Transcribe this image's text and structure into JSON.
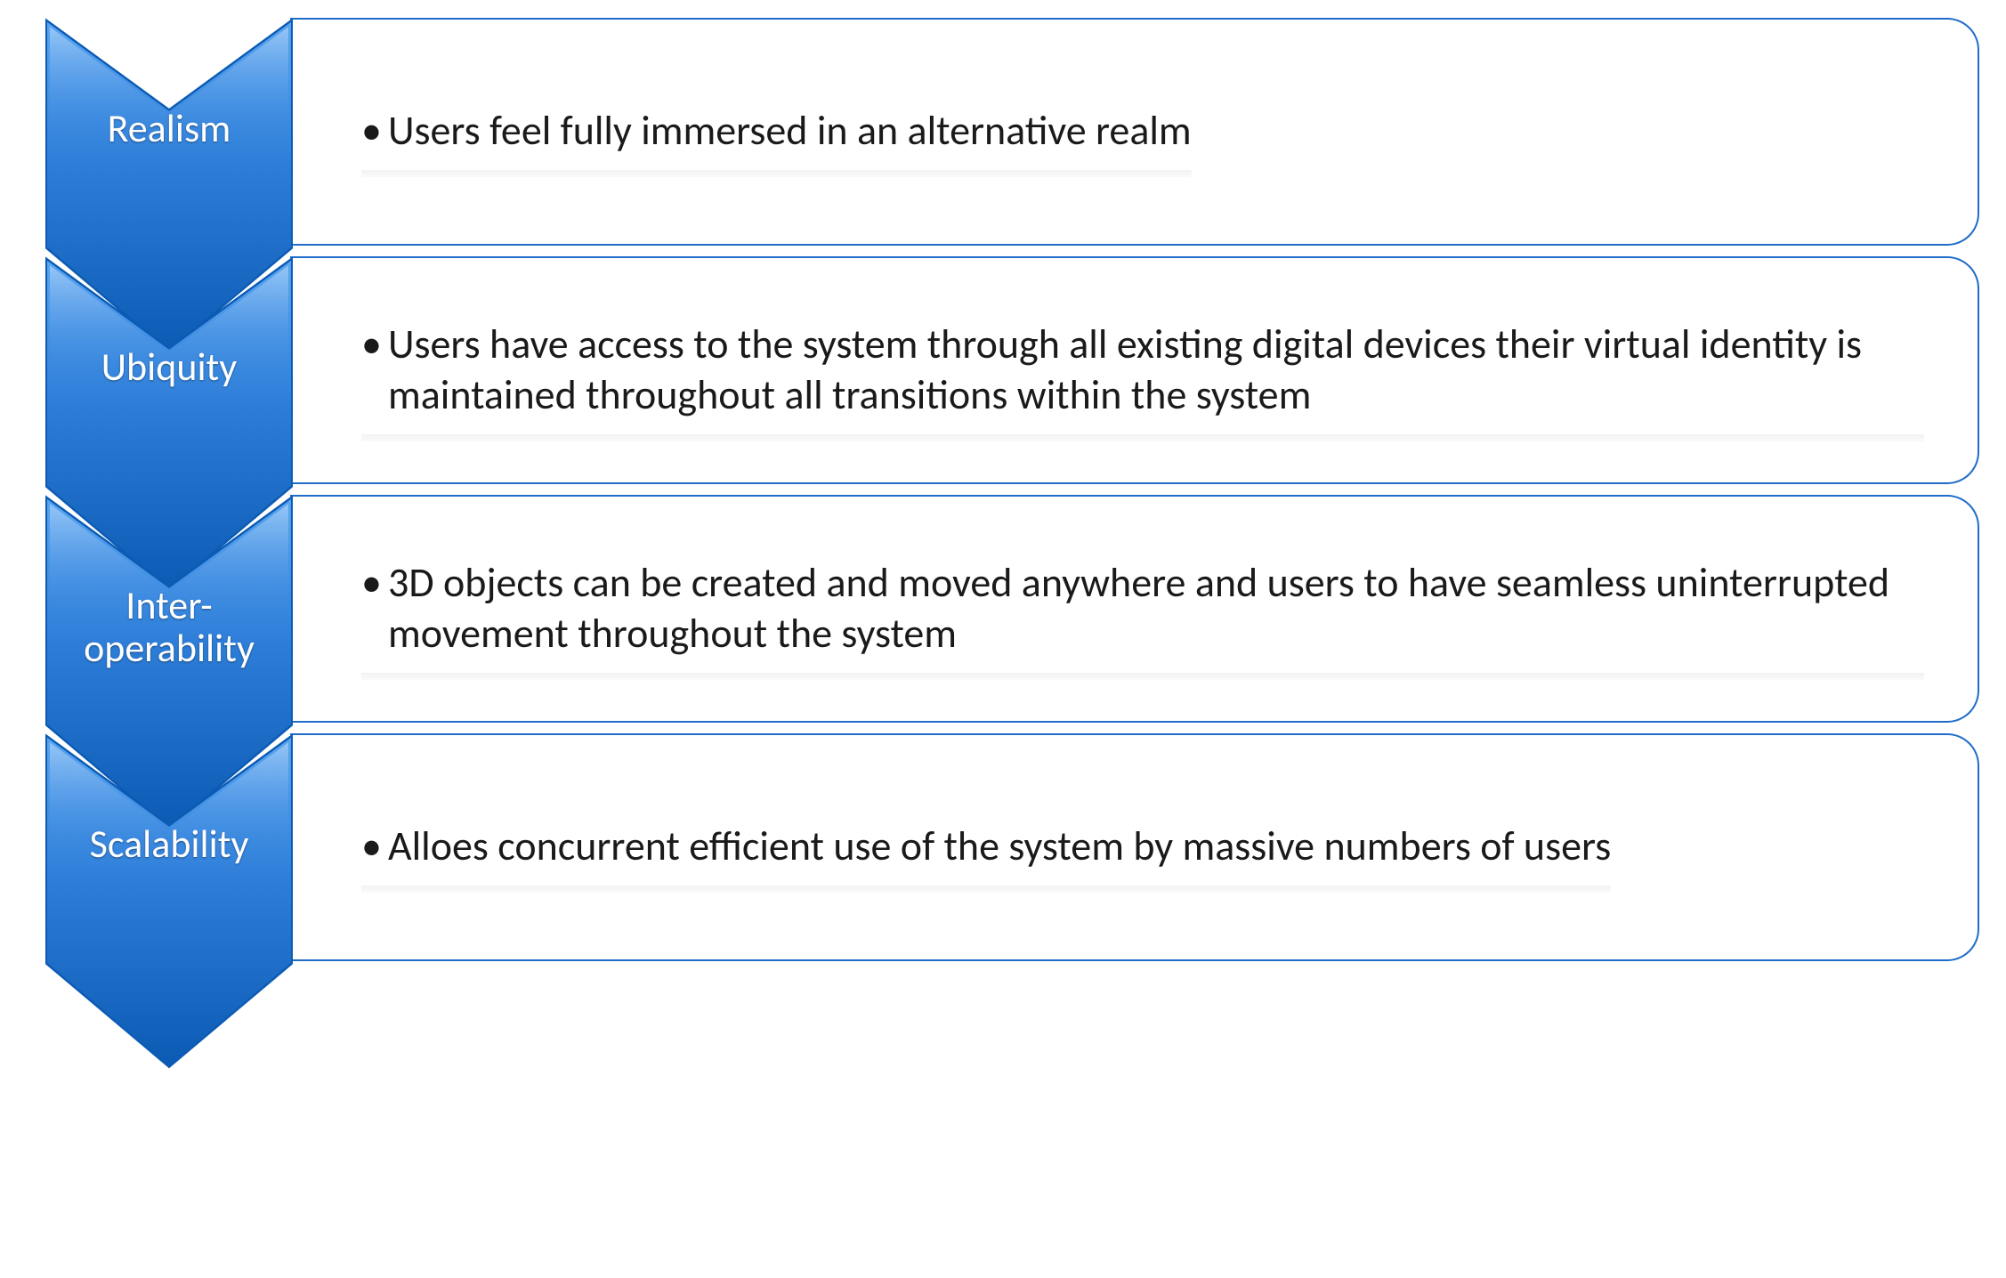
{
  "diagram": {
    "type": "infographic",
    "background_color": "#ffffff",
    "chevron_gradient_top": "#4f9ef0",
    "chevron_gradient_bottom": "#0b5bb4",
    "chevron_stroke": "#0b5bb4",
    "chevron_text_color": "#ffffff",
    "body_text_color": "#1a1a1a",
    "border_color": "#1f6cc9",
    "label_fontsize": 44,
    "body_fontsize": 46,
    "corner_radius": 36,
    "items": [
      {
        "label": "Realism",
        "text": "Users feel fully immersed in an alternative realm"
      },
      {
        "label": "Ubiquity",
        "text": "Users have access to the system through all existing digital devices their virtual identity is maintained throughout all transitions within the system"
      },
      {
        "label": "Inter-operability",
        "text": "3D objects can be created and moved anywhere and users to have seamless uninterrupted movement throughout the system"
      },
      {
        "label": "Scalability",
        "text": "Alloes concurrent efficient use of the system by massive numbers of users"
      }
    ]
  }
}
